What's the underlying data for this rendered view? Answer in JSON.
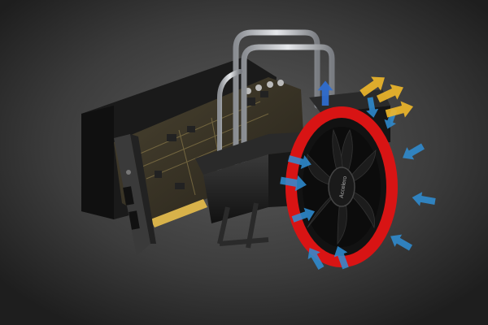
{
  "scene": {
    "subject": "graphics-card-with-heatpipe-cooler",
    "colors": {
      "background_light": "#5b5b5b",
      "background_dark": "#1e1e1e",
      "pcb": "#3a3426",
      "pcb_trace": "#8a7a4a",
      "gold_contacts": "#d8b24a",
      "heatsink": "#1f1f1f",
      "heatpipe": "#c9ccd0",
      "bracket": "#3a3a3a",
      "fan_ring": "#d81414",
      "fan_blade": "#141414",
      "intake_arrow": "#2f8fd6",
      "exhaust_arrow": "#f0b82a"
    },
    "fan_label": "Accelero",
    "airflow": {
      "intake_arrow_count": 10,
      "exhaust_arrow_count": 3,
      "upward_arrow_count": 1
    }
  }
}
